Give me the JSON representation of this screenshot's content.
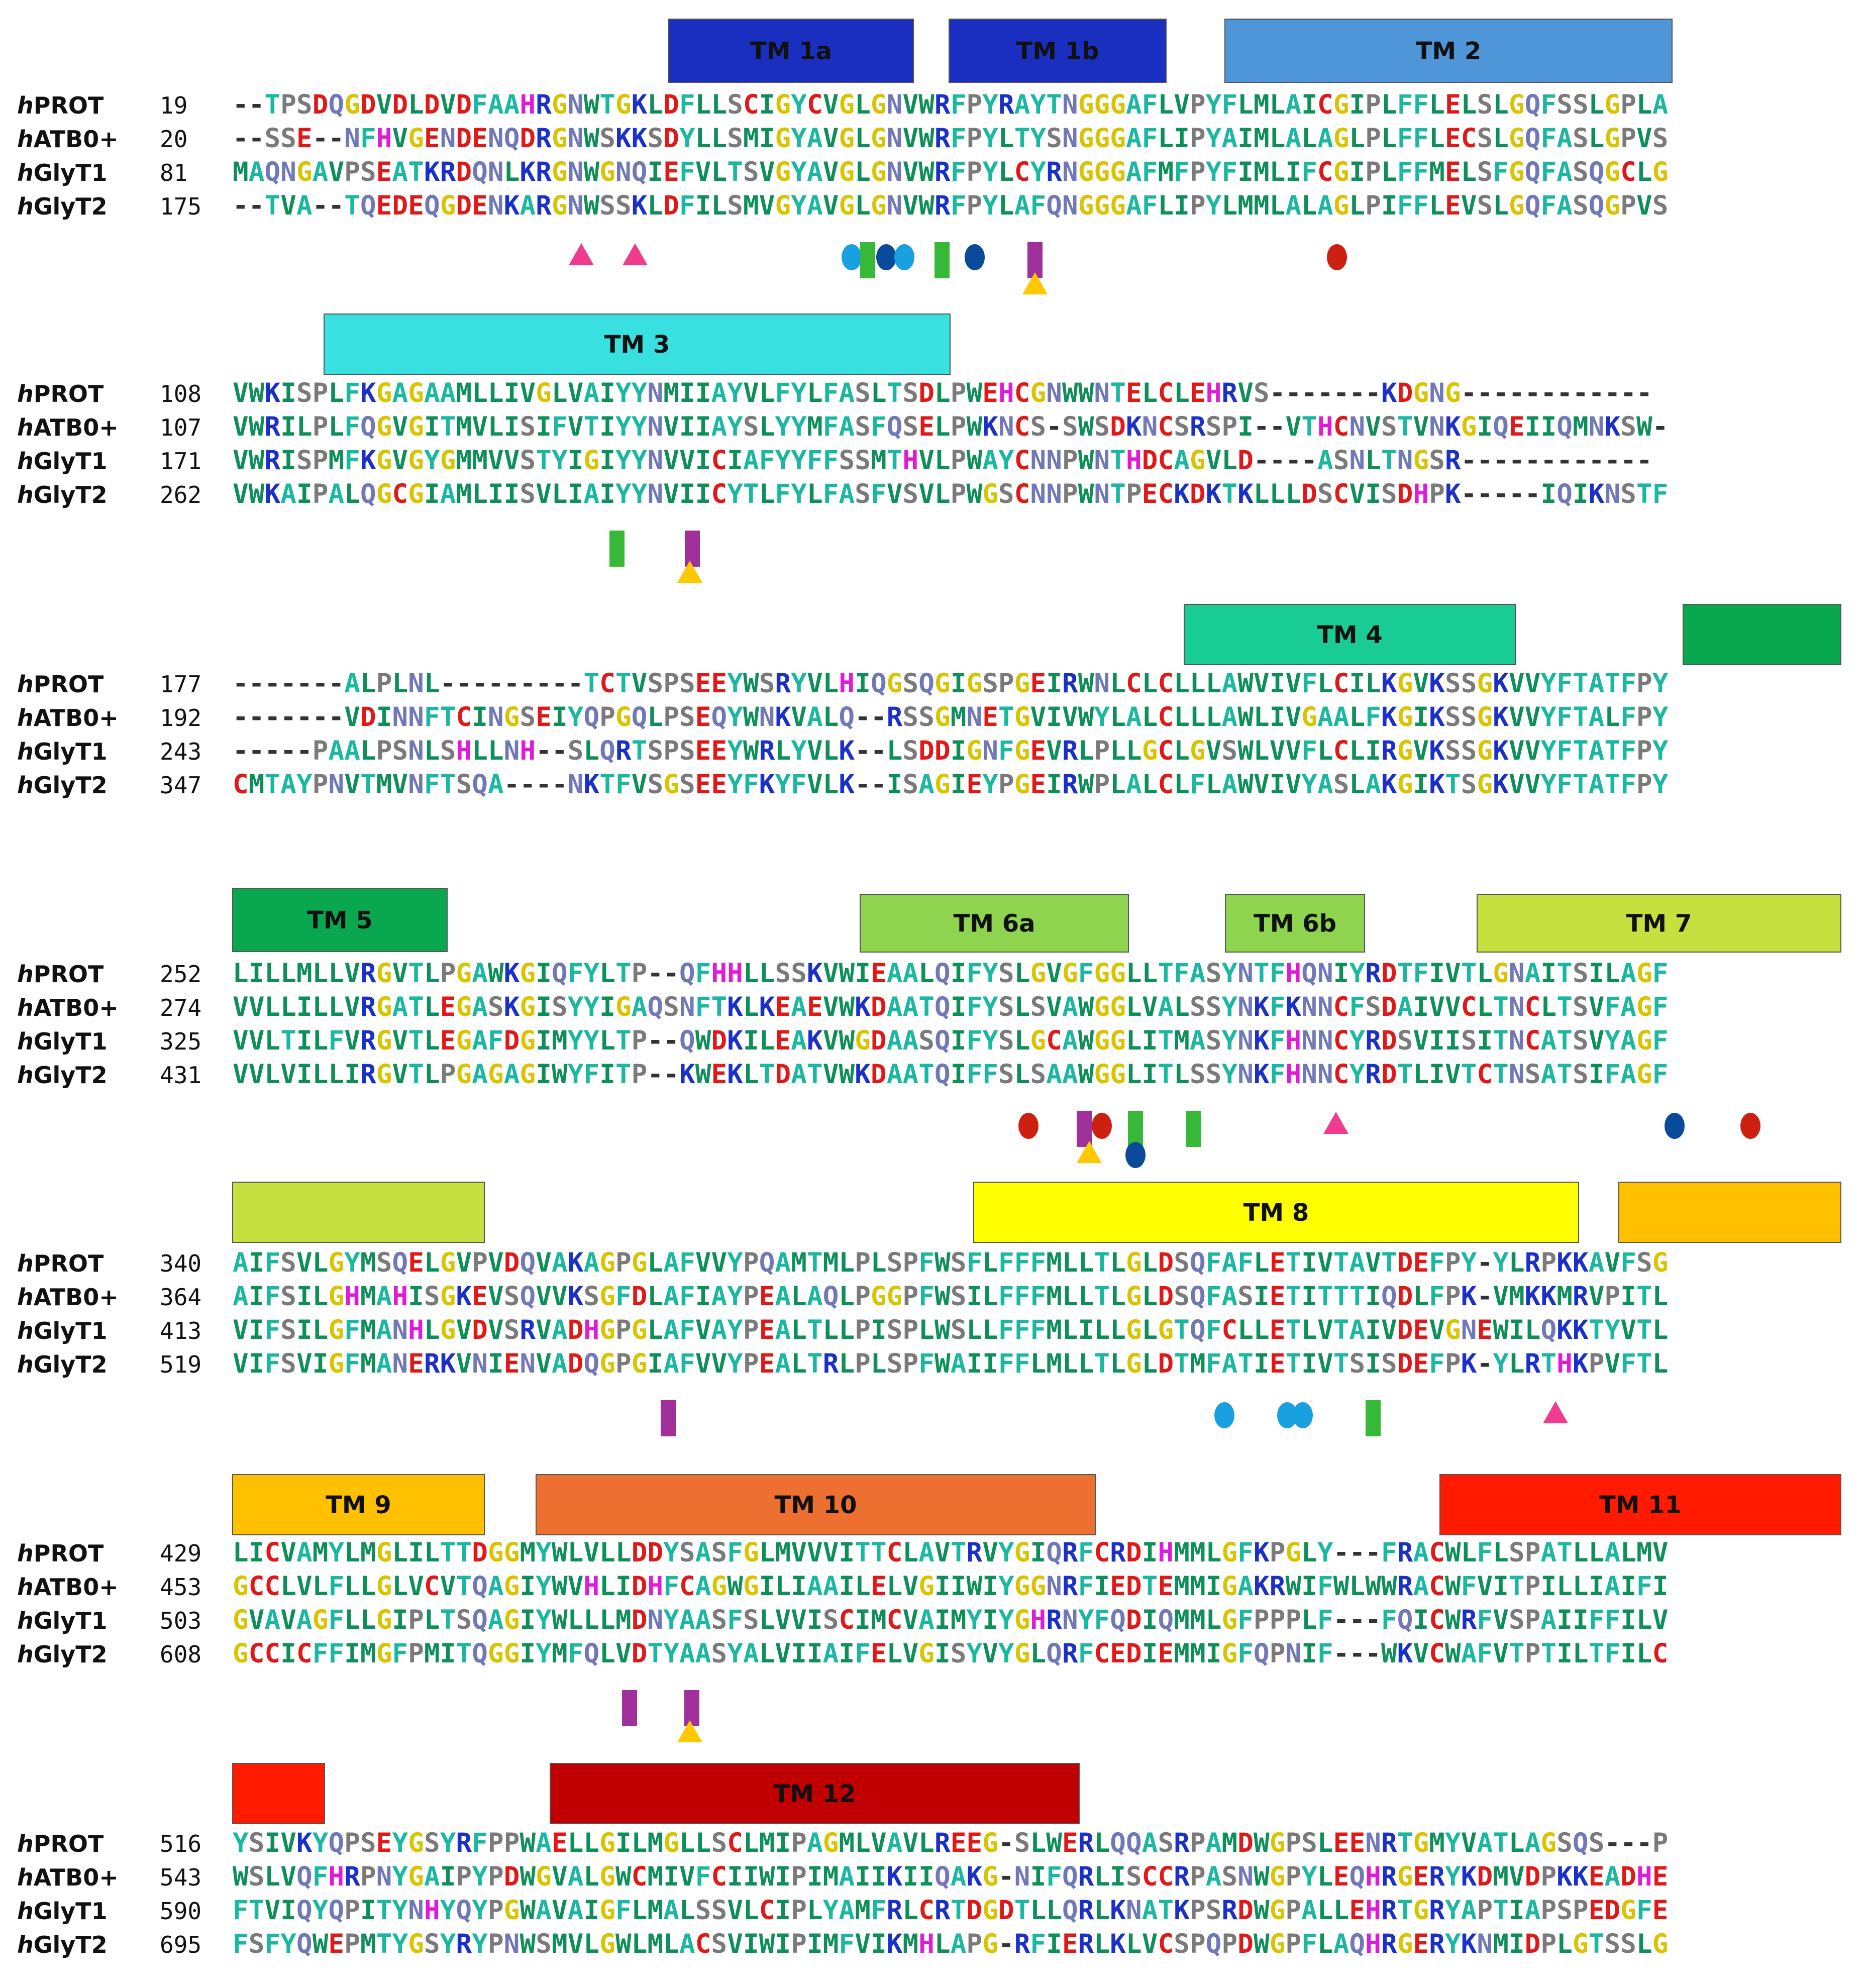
{
  "proteins": [
    "PROT",
    "ATB0+",
    "GlyT1",
    "GlyT2"
  ],
  "species_prefix": "h",
  "colors": {
    "A": "#1ab8a0",
    "G": "#d8c400",
    "L": "#0e8f5a",
    "I": "#0e8f5a",
    "V": "#0e8f5a",
    "M": "#0e8f5a",
    "F": "#1ab8a0",
    "W": "#0e8f5a",
    "Y": "#1ab8a0",
    "C": "#e01818",
    "D": "#e01818",
    "E": "#e01818",
    "H": "#e01ad8",
    "K": "#1a30c8",
    "R": "#1a30c8",
    "N": "#7078b8",
    "Q": "#7078b8",
    "S": "#7a7a7a",
    "T": "#1ab8a0",
    "P": "#7a7a7a",
    "-": "#333333"
  },
  "blocks": [
    {
      "tms": [
        {
          "label": "TM 1a",
          "color": "#1a2fc0"
        },
        {
          "label": "TM 1b",
          "color": "#1a2fc0"
        },
        {
          "label": "TM 2",
          "color": "#4e96d8"
        }
      ],
      "rows": [
        {
          "start": "19",
          "seq": "--TPSDQGDVDLDVDFAAHRGNWTGKLDFLLSCIGYCVGLGNVWRFPYRAYTNGGGAFLVPYFLMLAICGIPLFFLELSLGQFSSLGPLA"
        },
        {
          "start": "20",
          "seq": "--SSE--NFHVGENDENQDRGNWSKKSDYLLSMIGYAVGLGNVWRFPYLTYSNGGGAFLIPYAIMLALAGLPLFFLECSLGQFASLGPVS"
        },
        {
          "start": "81",
          "seq": "MAQNGAVPSEATKRDQNLKRGNWGNQIEFVLTSVGYAVGLGNVWRFPYLCYRNGGGAFMFPYFIMLIFCGIPLFFMELSFGQFASQGCLG"
        },
        {
          "start": "175",
          "seq": "--TVA--TQEDEQGDENKARGNWSSKLDFILSMVGYAVGLGNVWRFPYLAFQNGGGAFLIPYLMMLALAGLPIFFLEVSLGQFASQGPVS"
        }
      ],
      "markers": [
        {
          "type": "pink-triangle"
        },
        {
          "type": "pink-triangle"
        },
        {
          "type": "light-blue-oval"
        },
        {
          "type": "green-bar"
        },
        {
          "type": "navy-oval"
        },
        {
          "type": "light-blue-oval"
        },
        {
          "type": "green-bar"
        },
        {
          "type": "navy-oval"
        },
        {
          "type": "purple-bar"
        },
        {
          "type": "yellow-triangle"
        },
        {
          "type": "red-oval"
        }
      ]
    },
    {
      "tms": [
        {
          "label": "TM 3",
          "color": "#38e0e0"
        }
      ],
      "rows": [
        {
          "start": "108",
          "seq": "VWKISPLFKGAGAAMLLIVGLVAIYYNMIIAYVLFYLFASLTSDLPWEHCGNWWNTELCLEHRVS-------KDGNG------------"
        },
        {
          "start": "107",
          "seq": "VWRILPLFQGVGITMVLISIFVTIYYNVIIAYSLYYMFASFQSELPWKNCS-SWSDKNCSRSPI--VTHCNVSTVNKGIQEIIQMNKSW-"
        },
        {
          "start": "171",
          "seq": "VWRISPMFKGVGYGMMVVSTYIGIYYNVVICIAFYYFFSSMTHVLPWAYCNNPWNTHDCAGVLD----ASNLTNGSR------------"
        },
        {
          "start": "262",
          "seq": "VWKAIPALQGCGIAMLIISVLIAIYYNVIICYTLFYLFASFVSVLPWGSCNNPWNTPECKDKTKLLLDSCVISDHPK-----IQIKNSTF"
        }
      ],
      "markers": [
        {
          "type": "green-bar"
        },
        {
          "type": "purple-bar"
        },
        {
          "type": "yellow-triangle"
        }
      ]
    },
    {
      "tms": [
        {
          "label": "TM 4",
          "color": "#18cc94"
        },
        {
          "label": "",
          "color": "#0aa84e"
        }
      ],
      "rows": [
        {
          "start": "177",
          "seq": "-------ALPLNL---------TCTVSPSEEYWSRYVLHIQGSQGIGSPGEIRWNLCLCLLLAWVIVFLCILKGVKSSGKVVYFTATFPY"
        },
        {
          "start": "192",
          "seq": "-------VDINNFTCINGSEIYQPGQLPSEQYWNKVALQ--RSSGMNETGVIVWYLALCLLLAWLIVGAALFKGIKSSGKVVYFTALFPY"
        },
        {
          "start": "243",
          "seq": "-----PAALPSNLSHLLNH--SLQRTSPSEEYWRLYVLK--LSDDIGNFGEVRLPLLGCLGVSWLVVFLCLIRGVKSSGKVVYFTATFPY"
        },
        {
          "start": "347",
          "seq": "CMTAYPNVTMVNFTSQA----NKTFVSGSEEYFKYFVLK--ISAGIEYPGEIRWPLALCLFLAWVIVYASLAKGIKTSGKVVYFTATFPY"
        }
      ],
      "markers": []
    },
    {
      "tms": [
        {
          "label": "TM 5",
          "color": "#0aa84e"
        },
        {
          "label": "TM 6a",
          "color": "#8fd44e"
        },
        {
          "label": "TM 6b",
          "color": "#8fd44e"
        },
        {
          "label": "TM 7",
          "color": "#c6e040"
        }
      ],
      "rows": [
        {
          "start": "252",
          "seq": "LILLMLLVRGVTLPGAWKGIQFYLTP--QFHHLLSSKVWIEAALQIFYSLGVGFGGLLTFASYNTFHQNIYRDTFIVTLGNAITSILAGF"
        },
        {
          "start": "274",
          "seq": "VVLLILLVRGATLEGASKGISYYIGAQSNFTKLKEAEVWKDAATQIFYSLSVAWGGLVALSSYNKFKNNCFSDAIVVCLTNCLTSVFAGF"
        },
        {
          "start": "325",
          "seq": "VVLTILFVRGVTLEGAFDGIMYYLTP--QWDKILEAKVWGDAASQIFYSLGCAWGGLITMASYNKFHNNCYRDSVIISITNCATSVYAGF"
        },
        {
          "start": "431",
          "seq": "VVLVILLIRGVTLPGAGAGIWYFITP--KWEKLTDATVWKDAATQIFFSLSAAWGGLITLSSYNKFHNNCYRDTLIVTCTNSATSIFAGF"
        }
      ],
      "markers": [
        {
          "type": "red-oval"
        },
        {
          "type": "purple-bar"
        },
        {
          "type": "red-oval"
        },
        {
          "type": "yellow-triangle"
        },
        {
          "type": "green-bar"
        },
        {
          "type": "navy-oval"
        },
        {
          "type": "green-bar"
        },
        {
          "type": "pink-triangle"
        },
        {
          "type": "navy-oval"
        },
        {
          "type": "red-oval"
        }
      ]
    },
    {
      "tms": [
        {
          "label": "",
          "color": "#c6e040"
        },
        {
          "label": "TM 8",
          "color": "#ffff00"
        },
        {
          "label": "",
          "color": "#ffc000"
        }
      ],
      "rows": [
        {
          "start": "340",
          "seq": "AIFSVLGYMSQELGVPVDQVAKAGPGLAFVVYPQAMTMLPLSPFWSFLFFFMLLTLGLDSQFAFLETIVTAVTDEFPY-YLRPKKAVFSG"
        },
        {
          "start": "364",
          "seq": "AIFSILGHMAHISGKEVSQVVKSGFDLAFIAYPEALAQLPGGPFWSILFFFMLLTLGLDSQFASIETITTTIQDLFPK-VMKKMRVPITL"
        },
        {
          "start": "413",
          "seq": "VIFSILGFMANHLGVDVSRVADHGPGLAFVAYPEALTLLPISPLWSLLFFFMLILLGLGTQFCLLETLVTAIVDEVGNEWILQKKTYVTL"
        },
        {
          "start": "519",
          "seq": "VIFSVIGFMANERKVNIENVADQGPGIAFVVYPEALTRLPLSPFWAIIFFLMLLTLGLDTMFATIETIVTSISDEFPK-YLRTHKPVFTL"
        }
      ],
      "markers": [
        {
          "type": "purple-bar"
        },
        {
          "type": "light-blue-oval"
        },
        {
          "type": "light-blue-oval"
        },
        {
          "type": "light-blue-oval"
        },
        {
          "type": "green-bar"
        },
        {
          "type": "pink-triangle"
        }
      ]
    },
    {
      "tms": [
        {
          "label": "TM 9",
          "color": "#ffc000"
        },
        {
          "label": "TM 10",
          "color": "#ee7030"
        },
        {
          "label": "TM 11",
          "color": "#ff1a00"
        }
      ],
      "rows": [
        {
          "start": "429",
          "seq": "LICVAMYLMGLILTTDGGMYWLVLLDDYSASFGLMVVVITTCLAVTRVYGIQRFCRDIHMMLGFKPGLY---FRACWLFLSPATLLALMV"
        },
        {
          "start": "453",
          "seq": "GCCLVLFLLGLVCVTQAGIYWVHLIDHFCAGWGILIAAILELVGIIWIYGGNRFIEDTEMMIGAKRWIFWLWWRACWFVITPILLIAIFI"
        },
        {
          "start": "503",
          "seq": "GVAVAGFLLGIPLTSQAGIYWLLLMDNYAASFSLVVISCIMCVAIMYIYGHRNYFQDIQMMLGFPPPLF---FQICWRFVSPAIIFFILV"
        },
        {
          "start": "608",
          "seq": "GCCICFFIMGFPMITQGGIYMFQLVDTYAASYALVIIAIFELVGISYVYGLQRFCEDIEMMIGFQPNIF---WKVCWAFVTPTILTFILC"
        }
      ],
      "markers": [
        {
          "type": "purple-bar"
        },
        {
          "type": "purple-bar"
        },
        {
          "type": "yellow-triangle"
        }
      ]
    },
    {
      "tms": [
        {
          "label": "",
          "color": "#ff1a00"
        },
        {
          "label": "TM 12",
          "color": "#c00000"
        }
      ],
      "rows": [
        {
          "start": "516",
          "seq": "YSIVKYQPSEYGSYRFPPWAELLGILMGLLSCLMIPAGMLVAVLREEG-SLWERLQQASRPAMDWGPSLEENRTGMYVATLAGSQS---P"
        },
        {
          "start": "543",
          "seq": "WSLVQFHRPNYGAIPYPDWGVALGWCMIVFCIIWIPIMAIIKIIQAKG-NIFQRLISCCRPASNWGPYLEQHRGERYKDMVDPKKEADHE"
        },
        {
          "start": "590",
          "seq": "FTVIQYQPITYNHYQYPGWAVAIGFLMALSSVLCIPLYAMFRLCRTDGDTLLQRLKNATKPSRDWGPALLEHRTGRYAPTIAPSPEDGFE"
        },
        {
          "start": "695",
          "seq": "FSFYQWEPMTYGSYRYPNWSMVLGWLMLACSVIWIPIMFVIKMHLAPG-RFIERLKLVCSPQPDWGPFLAQHRGERYKNMIDPLGTSSLG"
        }
      ],
      "markers": []
    }
  ]
}
